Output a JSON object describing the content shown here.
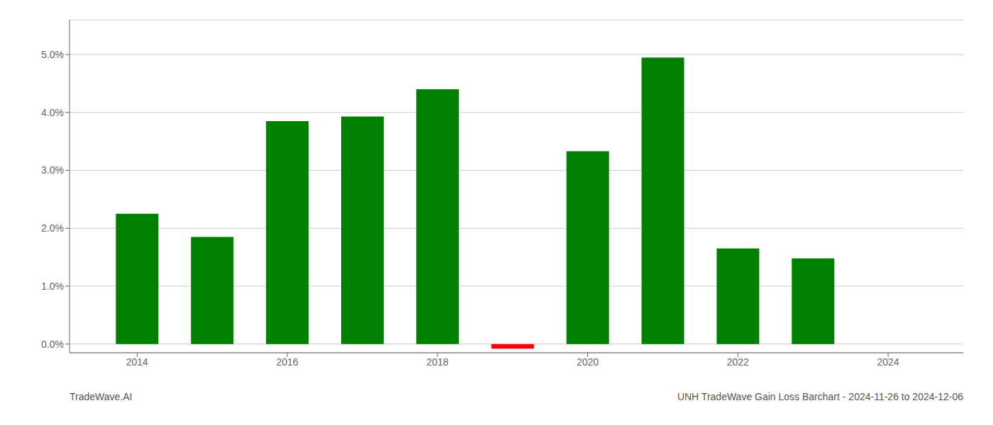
{
  "chart_data": {
    "type": "bar",
    "x": [
      2014,
      2015,
      2016,
      2017,
      2018,
      2019,
      2020,
      2021,
      2022,
      2023,
      2024
    ],
    "values": [
      0.0225,
      0.0185,
      0.0385,
      0.0393,
      0.044,
      -0.0008,
      0.0333,
      0.0495,
      0.0165,
      0.0148,
      0.0
    ],
    "colors": [
      "#008000",
      "#008000",
      "#008000",
      "#008000",
      "#008000",
      "#ff0000",
      "#008000",
      "#008000",
      "#008000",
      "#008000",
      "#008000"
    ],
    "ylim": [
      -0.0015,
      0.056
    ],
    "yticks": [
      {
        "value": 0.0,
        "label": "0.0%"
      },
      {
        "value": 0.01,
        "label": "1.0%"
      },
      {
        "value": 0.02,
        "label": "2.0%"
      },
      {
        "value": 0.03,
        "label": "3.0%"
      },
      {
        "value": 0.04,
        "label": "4.0%"
      },
      {
        "value": 0.05,
        "label": "5.0%"
      }
    ],
    "xlim": [
      2013.1,
      2025.0
    ],
    "xticks": [
      2014,
      2016,
      2018,
      2020,
      2022,
      2024
    ],
    "grid": true,
    "annotations": [
      "TradeWave.AI",
      "UNH TradeWave Gain Loss Barchart - 2024-11-26 to 2024-12-06"
    ]
  }
}
